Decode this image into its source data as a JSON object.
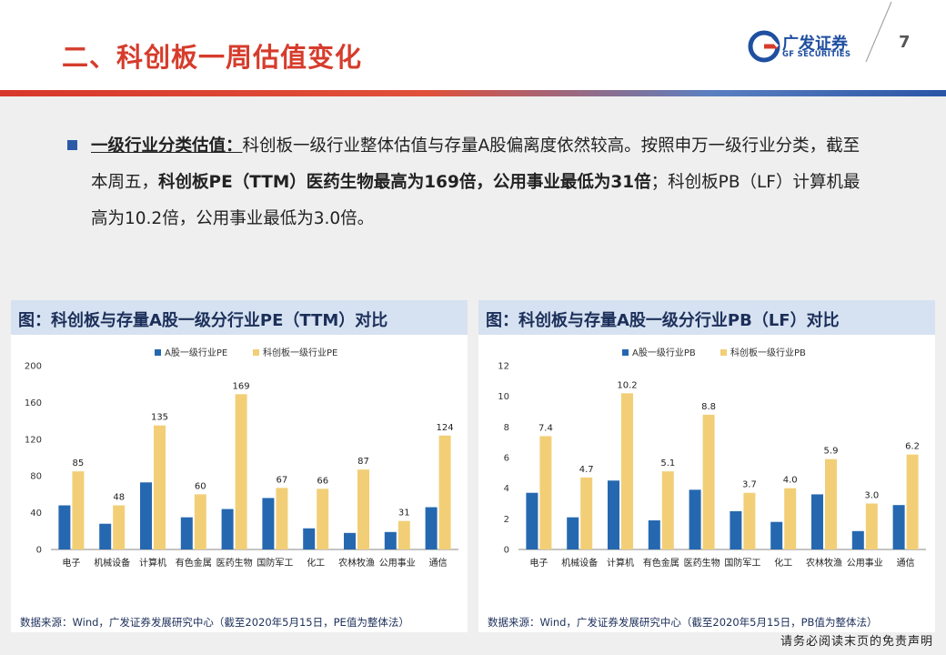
{
  "header": {
    "title": "二、科创板一周估值变化",
    "logo_cn": "广发证券",
    "logo_en": "GF SECURITIES",
    "page_number": "7"
  },
  "colors": {
    "a_share": "#2568b0",
    "star": "#f2cf77",
    "title_red": "#d63c2c",
    "brand_blue": "#1f4fa0"
  },
  "paragraph": {
    "keyword": "一级行业分类估值：",
    "text1": "科创板一级行业整体估值与存量A股偏离度依然较高。按照申万一级行业分类，截至本周五，",
    "bold1": "科创板PE（TTM）医药生物最高为169倍，公用事业最低为31倍",
    "text2": "；科创板PB（LF）计算机最高为10.2倍，公用事业最低为3.0倍。"
  },
  "footer_note": "请务必阅读末页的免责声明",
  "chart_data": [
    {
      "type": "bar",
      "title": "图：科创板与存量A股一级分行业PE（TTM）对比",
      "categories": [
        "电子",
        "机械设备",
        "计算机",
        "有色金属",
        "医药生物",
        "国防军工",
        "化工",
        "农林牧渔",
        "公用事业",
        "通信"
      ],
      "series": [
        {
          "name": "A股一级行业PE",
          "values": [
            48,
            28,
            73,
            35,
            44,
            56,
            23,
            18,
            19,
            46
          ]
        },
        {
          "name": "科创板一级行业PE",
          "values": [
            85,
            48,
            135,
            60,
            169,
            67,
            66,
            87,
            31,
            124
          ]
        }
      ],
      "value_labels_series": 1,
      "label_decimals": 0,
      "ylim": [
        0,
        200
      ],
      "yticks": [
        0,
        40,
        80,
        120,
        160,
        200
      ],
      "legend": "top-center",
      "source": "数据来源：Wind，广发证券发展研究中心（截至2020年5月15日，PE值为整体法）"
    },
    {
      "type": "bar",
      "title": "图：科创板与存量A股一级分行业PB（LF）对比",
      "categories": [
        "电子",
        "机械设备",
        "计算机",
        "有色金属",
        "医药生物",
        "国防军工",
        "化工",
        "农林牧渔",
        "公用事业",
        "通信"
      ],
      "series": [
        {
          "name": "A股一级行业PB",
          "values": [
            3.7,
            2.1,
            4.5,
            1.9,
            3.9,
            2.5,
            1.8,
            3.6,
            1.2,
            2.9
          ]
        },
        {
          "name": "科创板一级行业PB",
          "values": [
            7.4,
            4.7,
            10.2,
            5.1,
            8.8,
            3.7,
            4.0,
            5.9,
            3.0,
            6.2
          ]
        }
      ],
      "value_labels_series": 1,
      "label_decimals": 1,
      "ylim": [
        0,
        12
      ],
      "yticks": [
        0,
        2,
        4,
        6,
        8,
        10,
        12
      ],
      "legend": "top-center",
      "source": "数据来源：Wind，广发证券发展研究中心（截至2020年5月15日，PB值为整体法）"
    }
  ]
}
